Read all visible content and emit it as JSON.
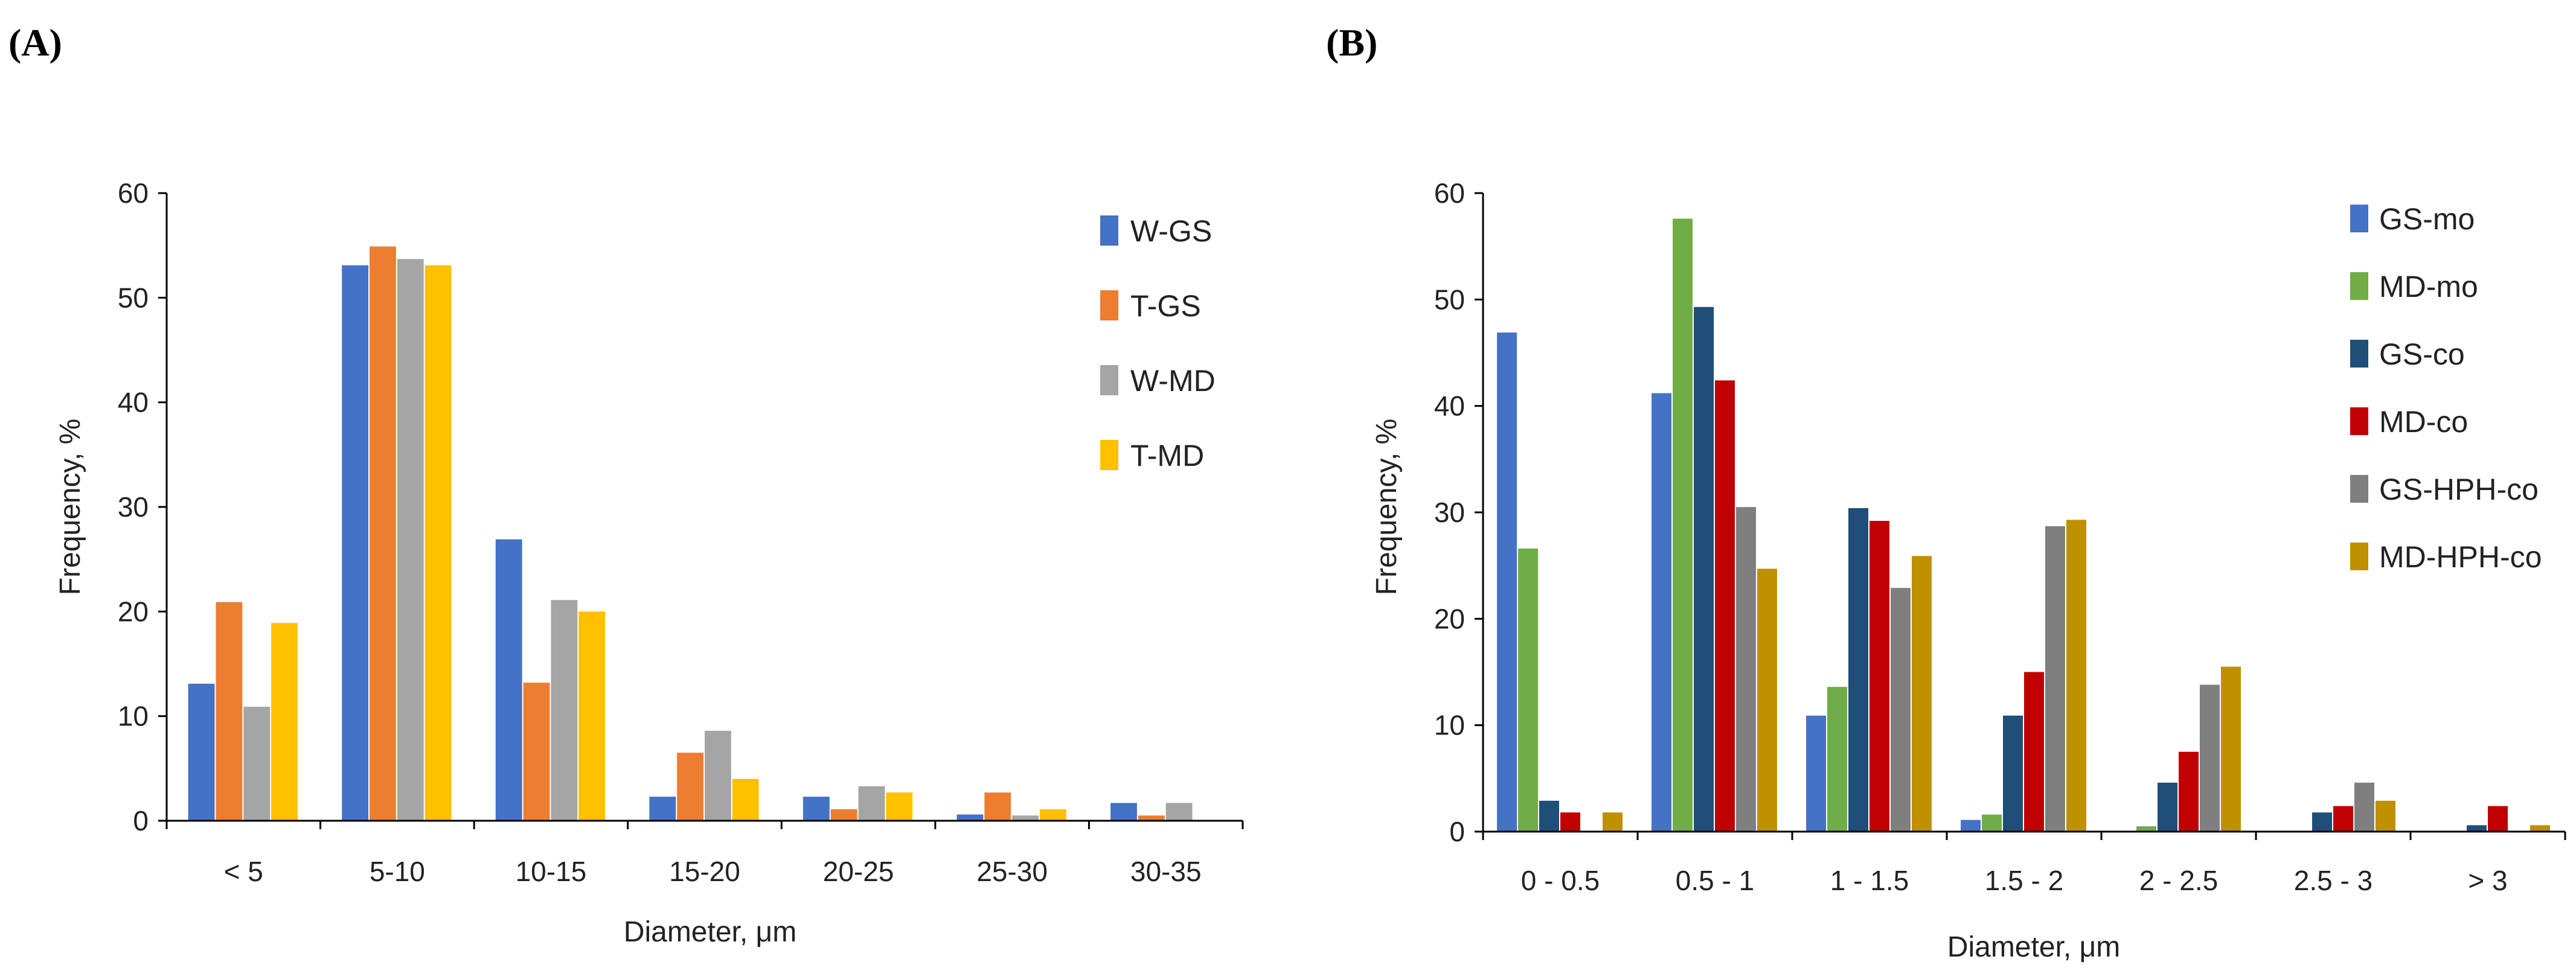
{
  "chart_data": [
    {
      "panel": "(A)",
      "type": "bar",
      "xlabel": "Diameter, μm",
      "ylabel": "Frequency, %",
      "ylim": [
        0,
        60
      ],
      "yticks": [
        0,
        10,
        20,
        30,
        40,
        50,
        60
      ],
      "grid": false,
      "legend_position": "top-right",
      "categories": [
        "< 5",
        "5-10",
        "10-15",
        "15-20",
        "20-25",
        "25-30",
        "30-35"
      ],
      "series": [
        {
          "name": "W-GS",
          "color": "#4472C4",
          "values": [
            13.1,
            53.1,
            26.9,
            2.3,
            2.3,
            0.6,
            1.7
          ]
        },
        {
          "name": "T-GS",
          "color": "#ED7D31",
          "values": [
            20.9,
            54.9,
            13.2,
            6.5,
            1.1,
            2.7,
            0.5
          ]
        },
        {
          "name": "W-MD",
          "color": "#A5A5A5",
          "values": [
            10.9,
            53.7,
            21.1,
            8.6,
            3.3,
            0.5,
            1.7
          ]
        },
        {
          "name": "T-MD",
          "color": "#FFC000",
          "values": [
            18.9,
            53.1,
            20.0,
            4.0,
            2.7,
            1.1,
            0.0
          ]
        }
      ]
    },
    {
      "panel": "(B)",
      "type": "bar",
      "xlabel": "Diameter, μm",
      "ylabel": "Frequency, %",
      "ylim": [
        0,
        60
      ],
      "yticks": [
        0,
        10,
        20,
        30,
        40,
        50,
        60
      ],
      "grid": false,
      "legend_position": "top-right",
      "categories": [
        "0 - 0.5",
        "0.5 - 1",
        "1 - 1.5",
        "1.5 - 2",
        "2 - 2.5",
        "2.5 - 3",
        "> 3"
      ],
      "series": [
        {
          "name": "GS-mo",
          "color": "#4472C4",
          "values": [
            46.9,
            41.2,
            10.9,
            1.1,
            0.0,
            0.0,
            0.0
          ]
        },
        {
          "name": "MD-mo",
          "color": "#70AD47",
          "values": [
            26.6,
            57.6,
            13.6,
            1.6,
            0.5,
            0.0,
            0.0
          ]
        },
        {
          "name": "GS-co",
          "color": "#1F4E79",
          "values": [
            2.9,
            49.3,
            30.4,
            10.9,
            4.6,
            1.8,
            0.6
          ]
        },
        {
          "name": "MD-co",
          "color": "#C00000",
          "values": [
            1.8,
            42.4,
            29.2,
            15.0,
            7.5,
            2.4,
            2.4
          ]
        },
        {
          "name": "GS-HPH-co",
          "color": "#7F7F7F",
          "values": [
            0.0,
            30.5,
            22.9,
            28.7,
            13.8,
            4.6,
            0.0
          ]
        },
        {
          "name": "MD-HPH-co",
          "color": "#BF9000",
          "values": [
            1.8,
            24.7,
            25.9,
            29.3,
            15.5,
            2.9,
            0.6
          ]
        }
      ]
    }
  ]
}
